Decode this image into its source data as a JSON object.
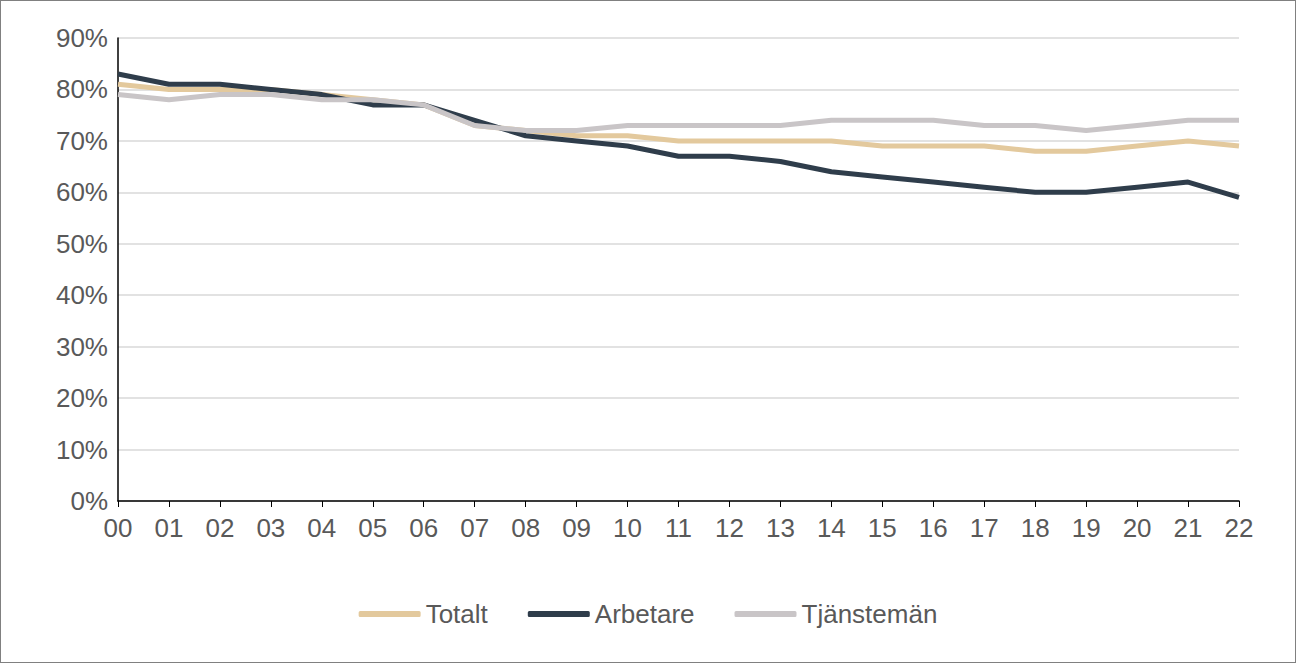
{
  "chart_data": {
    "type": "line",
    "categories": [
      "00",
      "01",
      "02",
      "03",
      "04",
      "05",
      "06",
      "07",
      "08",
      "09",
      "10",
      "11",
      "12",
      "13",
      "14",
      "15",
      "16",
      "17",
      "18",
      "19",
      "20",
      "21",
      "22"
    ],
    "series": [
      {
        "name": "Totalt",
        "color": "#e3c99d",
        "values": [
          81,
          80,
          80,
          80,
          79,
          78,
          77,
          73,
          72,
          71,
          71,
          70,
          70,
          70,
          70,
          69,
          69,
          69,
          68,
          68,
          69,
          70,
          69
        ]
      },
      {
        "name": "Arbetare",
        "color": "#2f3d4b",
        "values": [
          83,
          81,
          81,
          80,
          79,
          77,
          77,
          74,
          71,
          70,
          69,
          67,
          67,
          66,
          64,
          63,
          62,
          61,
          60,
          60,
          61,
          62,
          59
        ]
      },
      {
        "name": "Tjänstemän",
        "color": "#c9c5c7",
        "values": [
          79,
          78,
          79,
          79,
          78,
          78,
          77,
          73,
          72,
          72,
          73,
          73,
          73,
          73,
          74,
          74,
          74,
          73,
          73,
          72,
          73,
          74,
          74
        ]
      }
    ],
    "ylim": [
      0,
      90
    ],
    "yticks": [
      {
        "value": 0,
        "label": "0%"
      },
      {
        "value": 10,
        "label": "10%"
      },
      {
        "value": 20,
        "label": "20%"
      },
      {
        "value": 30,
        "label": "30%"
      },
      {
        "value": 40,
        "label": "40%"
      },
      {
        "value": 50,
        "label": "50%"
      },
      {
        "value": 60,
        "label": "60%"
      },
      {
        "value": 70,
        "label": "70%"
      },
      {
        "value": 80,
        "label": "80%"
      },
      {
        "value": 90,
        "label": "90%"
      }
    ],
    "grid": true,
    "legend": "bottom"
  }
}
